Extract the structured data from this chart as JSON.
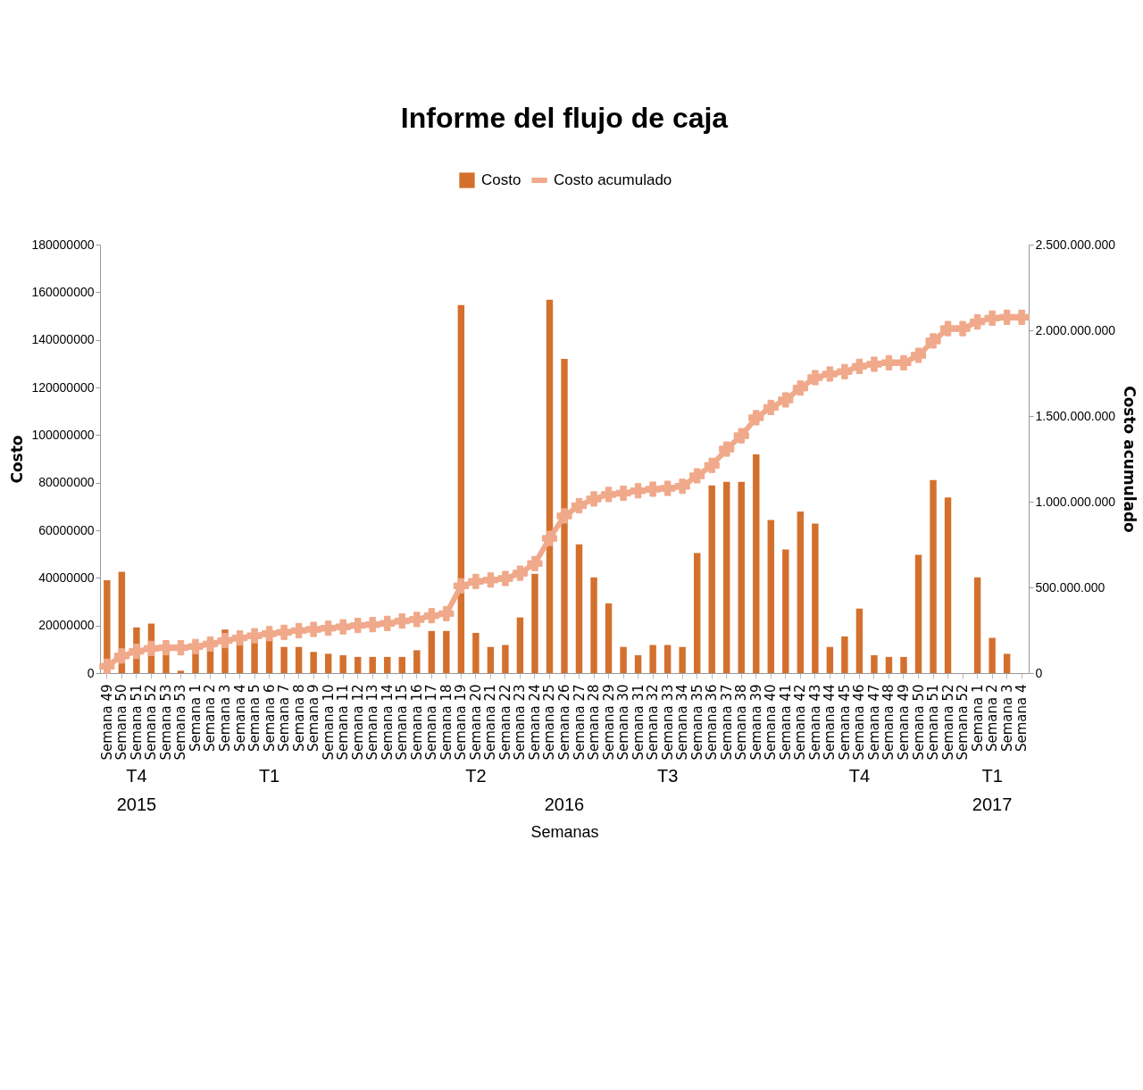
{
  "chart_data": {
    "type": "bar",
    "title": "Informe del flujo de caja",
    "xlabel": "Semanas",
    "ylabel": "Costo",
    "y2label": "Costo acumulado",
    "categories": [
      "Semana 49",
      "Semana 50",
      "Semana 51",
      "Semana 52",
      "Semana 53",
      "Semana 53",
      "Semana 1",
      "Semana 2",
      "Semana 3",
      "Semana 4",
      "Semana 5",
      "Semana 6",
      "Semana 7",
      "Semana 8",
      "Semana 9",
      "Semana 10",
      "Semana 11",
      "Semana 12",
      "Semana 13",
      "Semana 14",
      "Semana 15",
      "Semana 16",
      "Semana 17",
      "Semana 18",
      "Semana 19",
      "Semana 20",
      "Semana 21",
      "Semana 22",
      "Semana 23",
      "Semana 24",
      "Semana 25",
      "Semana 26",
      "Semana 27",
      "Semana 28",
      "Semana 29",
      "Semana 30",
      "Semana 31",
      "Semana 32",
      "Semana 33",
      "Semana 34",
      "Semana 35",
      "Semana 36",
      "Semana 37",
      "Semana 38",
      "Semana 39",
      "Semana 40",
      "Semana 41",
      "Semana 42",
      "Semana 43",
      "Semana 44",
      "Semana 45",
      "Semana 46",
      "Semana 47",
      "Semana 48",
      "Semana 49",
      "Semana 50",
      "Semana 51",
      "Semana 52",
      "Semana 52",
      "Semana 1",
      "Semana 2",
      "Semana 3",
      "Semana 4"
    ],
    "series": [
      {
        "name": "Costo",
        "color": "#d4702e",
        "values": [
          39000000,
          42600000,
          19200000,
          20800000,
          12300000,
          1000000,
          10000000,
          14000000,
          18300000,
          15000000,
          16000000,
          17000000,
          11000000,
          11000000,
          8900000,
          8100000,
          7500000,
          6800000,
          6800000,
          6800000,
          6800000,
          9600000,
          17700000,
          17700000,
          154600000,
          16900000,
          11000000,
          11800000,
          23400000,
          41700000,
          156800000,
          132000000,
          54100000,
          40200000,
          29300000,
          11000000,
          7500000,
          11800000,
          11800000,
          11000000,
          50400000,
          78800000,
          80300000,
          80300000,
          91900000,
          64300000,
          51900000,
          67900000,
          62800000,
          11000000,
          15400000,
          27100000,
          7500000,
          6800000,
          6800000,
          49700000,
          81100000,
          73800000,
          0,
          40200000,
          14800000,
          8100000,
          0
        ]
      },
      {
        "name": "Costo acumulado",
        "type": "line",
        "axis": "y2",
        "color": "#f0a98a",
        "marker": "cross",
        "values": [
          40000000,
          100000000,
          127000000,
          144000000,
          148000000,
          148000000,
          155000000,
          170000000,
          190000000,
          205000000,
          218000000,
          230000000,
          238000000,
          248000000,
          255000000,
          262000000,
          270000000,
          278000000,
          283000000,
          290000000,
          304000000,
          313000000,
          335000000,
          347000000,
          509000000,
          535000000,
          543000000,
          552000000,
          583000000,
          639000000,
          786000000,
          917000000,
          977000000,
          1016000000,
          1042000000,
          1050000000,
          1064000000,
          1073000000,
          1078000000,
          1090000000,
          1151000000,
          1212000000,
          1307000000,
          1385000000,
          1490000000,
          1550000000,
          1594000000,
          1663000000,
          1724000000,
          1745000000,
          1759000000,
          1790000000,
          1802000000,
          1811000000,
          1811000000,
          1854000000,
          1938000000,
          2010000000,
          2010000000,
          2049000000,
          2071000000,
          2076000000,
          2076000000
        ]
      }
    ],
    "ylim": [
      0,
      180000000
    ],
    "yticks": [
      0,
      20000000,
      40000000,
      60000000,
      80000000,
      100000000,
      120000000,
      140000000,
      160000000,
      180000000
    ],
    "y2lim": [
      0,
      2500000000
    ],
    "y2ticks": [
      0,
      {
        "value": 500000000,
        "label": "500.000.000"
      },
      {
        "value": 1000000000,
        "label": "1.000.000.000"
      },
      {
        "value": 1500000000,
        "label": "1.500.000.000"
      },
      {
        "value": 2000000000,
        "label": "2.000.000.000"
      },
      {
        "value": 2500000000,
        "label": "2.500.000.000"
      }
    ],
    "legend": "top",
    "grid": false,
    "annotations": [
      "T4",
      "T1",
      "T2",
      "T3",
      "T4",
      "T1",
      "2015",
      "2016",
      "2017"
    ]
  }
}
